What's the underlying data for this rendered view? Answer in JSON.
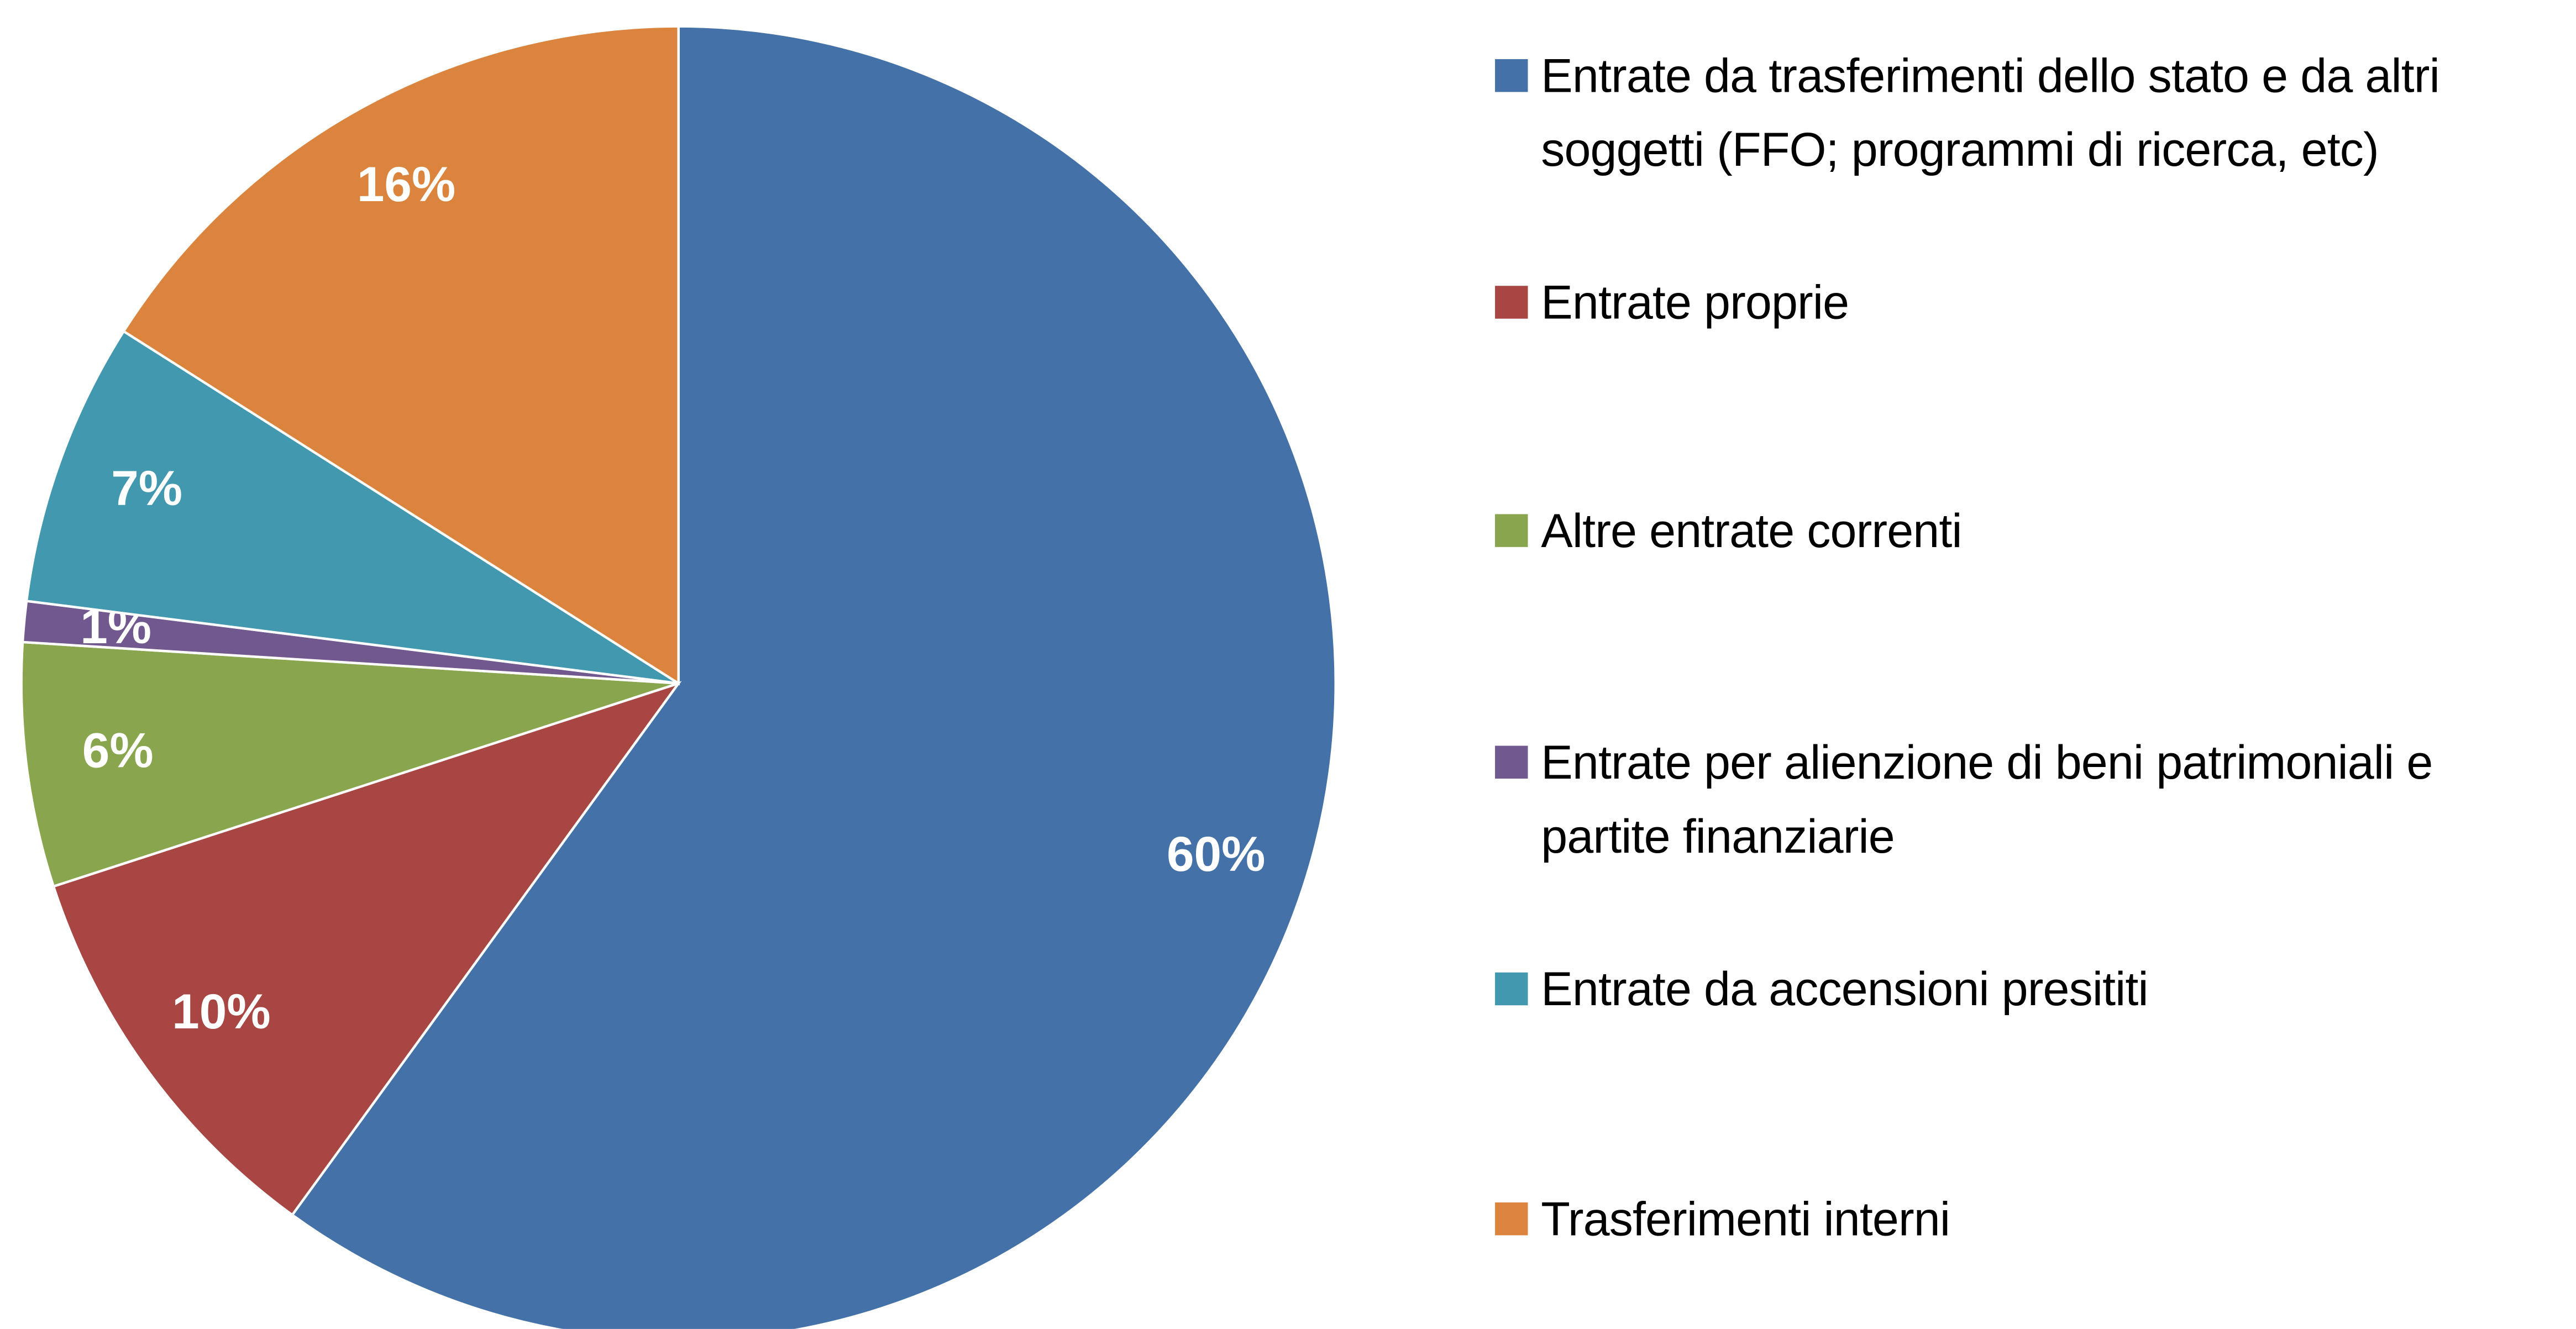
{
  "chart_data": {
    "type": "pie",
    "categories": [
      "Entrate da trasferimenti dello stato e da altri soggetti (FFO; programmi di ricerca, etc)",
      "Entrate proprie",
      "Altre entrate correnti",
      "Entrate per alienzione di beni patrimoniali e partite finanziarie",
      "Entrate da accensioni presititi",
      "Trasferimenti interni"
    ],
    "values": [
      60,
      10,
      6,
      1,
      7,
      16
    ],
    "value_labels": [
      "60%",
      "10%",
      "6%",
      "1%",
      "7%",
      "16%"
    ],
    "colors": [
      "#4472a8",
      "#a84644",
      "#89a54e",
      "#71588f",
      "#4198af",
      "#db843d"
    ],
    "legend": "right"
  }
}
